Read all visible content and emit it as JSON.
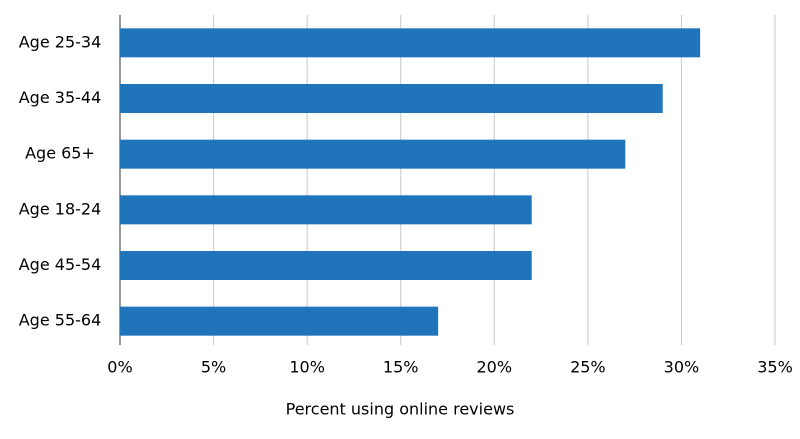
{
  "chart_data": {
    "type": "barh",
    "categories": [
      "Age 25-34",
      "Age 35-44",
      "Age 65+",
      "Age 18-24",
      "Age 45-54",
      "Age 55-64"
    ],
    "values": [
      31,
      29,
      27,
      22,
      22,
      17
    ],
    "color": "#1f74bb",
    "x_label": "Percent using online reviews",
    "xlim": [
      0,
      35
    ],
    "xticks": [
      {
        "value": 0,
        "label": "0%"
      },
      {
        "value": 5,
        "label": "5%"
      },
      {
        "value": 10,
        "label": "10%"
      },
      {
        "value": 15,
        "label": "15%"
      },
      {
        "value": 20,
        "label": "20%"
      },
      {
        "value": 25,
        "label": "25%"
      },
      {
        "value": 30,
        "label": "30%"
      },
      {
        "value": 35,
        "label": "35%"
      }
    ],
    "grid": true
  }
}
